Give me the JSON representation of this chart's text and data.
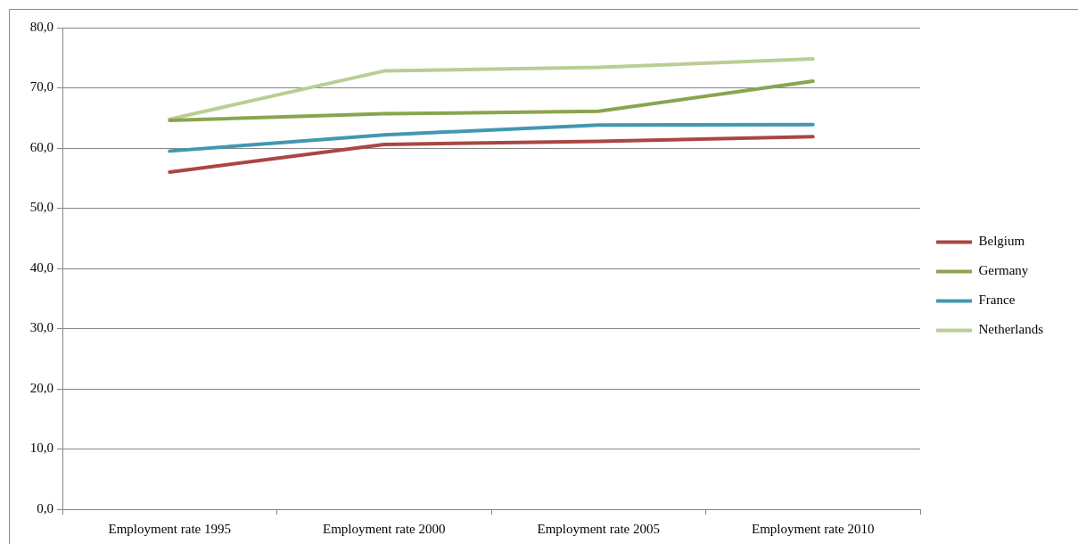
{
  "chart_data": {
    "type": "line",
    "categories": [
      "Employment rate 1995",
      "Employment rate 2000",
      "Employment rate 2005",
      "Employment rate 2010"
    ],
    "series": [
      {
        "name": "Belgium",
        "color": "#aa4643",
        "values": [
          56.0,
          60.6,
          61.1,
          61.9
        ]
      },
      {
        "name": "Germany",
        "color": "#89a54e",
        "values": [
          64.6,
          65.7,
          66.1,
          71.1
        ]
      },
      {
        "name": "France",
        "color": "#4198af",
        "values": [
          59.5,
          62.2,
          63.8,
          63.9
        ]
      },
      {
        "name": "Netherlands",
        "color": "#b9cd96",
        "values": [
          64.8,
          72.8,
          73.4,
          74.8
        ]
      }
    ],
    "ylim": [
      0,
      80
    ],
    "yticks": [
      {
        "value": 0,
        "label": "0,0"
      },
      {
        "value": 10,
        "label": "10,0"
      },
      {
        "value": 20,
        "label": "20,0"
      },
      {
        "value": 30,
        "label": "30,0"
      },
      {
        "value": 40,
        "label": "40,0"
      },
      {
        "value": 50,
        "label": "50,0"
      },
      {
        "value": 60,
        "label": "60,0"
      },
      {
        "value": 70,
        "label": "70,0"
      },
      {
        "value": 80,
        "label": "80,0"
      }
    ],
    "grid": "y",
    "legend": "right",
    "marker": "none"
  }
}
